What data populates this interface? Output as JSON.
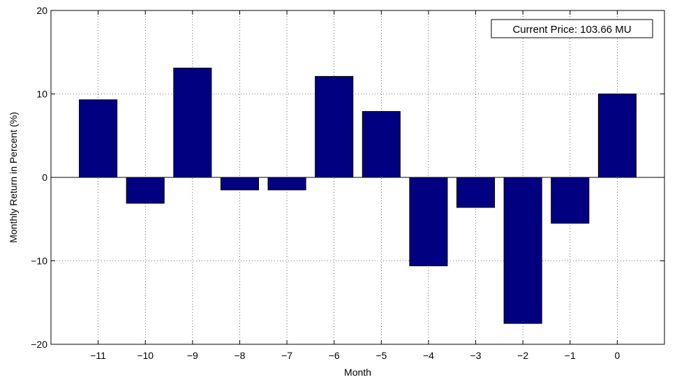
{
  "chart_data": {
    "type": "bar",
    "categories": [
      "−11",
      "−10",
      "−9",
      "−8",
      "−7",
      "−6",
      "−5",
      "−4",
      "−3",
      "−2",
      "−1",
      "0"
    ],
    "x": [
      -11,
      -10,
      -9,
      -8,
      -7,
      -6,
      -5,
      -4,
      -3,
      -2,
      -1,
      0
    ],
    "values": [
      9.3,
      -3.1,
      13.1,
      -1.5,
      -1.5,
      12.1,
      7.9,
      -10.6,
      -3.6,
      -17.5,
      -5.5,
      10.0
    ],
    "xlabel": "Month",
    "ylabel": "Monthly Return in Percent (%)",
    "ylim": [
      -20,
      20
    ],
    "xlim": [
      -12,
      1
    ],
    "yticks": [
      -20,
      -10,
      0,
      10,
      20
    ],
    "ytick_labels": [
      "−20",
      "−10",
      "0",
      "10",
      "20"
    ],
    "grid": true,
    "bar_color": "#000080",
    "annotation": "Current Price: 103.66 MU"
  }
}
